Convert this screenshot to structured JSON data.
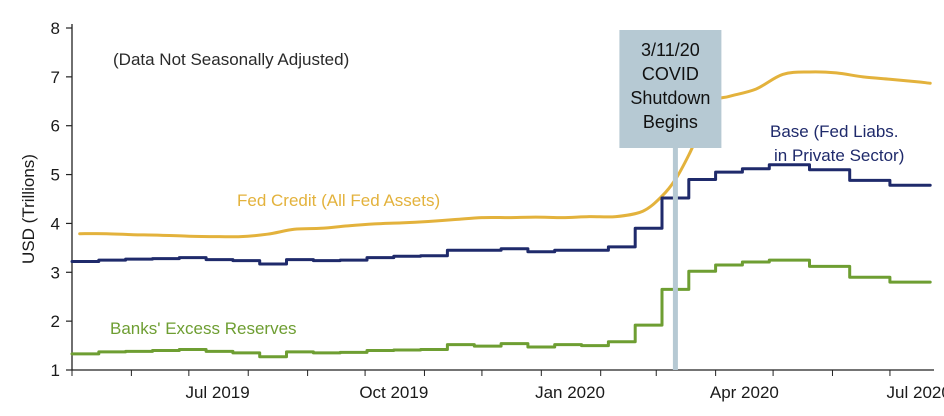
{
  "chart_data": {
    "type": "line",
    "ylabel": "USD (Trillions)",
    "ylim": [
      1,
      8
    ],
    "y_ticks": [
      "1",
      "2",
      "3",
      "4",
      "5",
      "6",
      "7",
      "8"
    ],
    "x_range": [
      "2019-05-01",
      "2020-07-24"
    ],
    "x_ticks": [
      {
        "date": "2019-07-01",
        "label": "Jul 2019"
      },
      {
        "date": "2019-10-01",
        "label": "Oct 2019"
      },
      {
        "date": "2020-01-01",
        "label": "Jan 2020"
      },
      {
        "date": "2020-04-01",
        "label": "Apr 2020"
      },
      {
        "date": "2020-07-01",
        "label": "Jul 2020"
      }
    ],
    "note": "(Data Not Seasonally Adjusted)",
    "event": {
      "date": "2020-03-11",
      "label_lines": [
        "3/11/20",
        "COVID",
        "Shutdown",
        "Begins"
      ]
    },
    "series": [
      {
        "name": "Fed Credit (All Fed Assets)",
        "color": "#E3B23C",
        "dates": [
          "2019-05-05",
          "2019-05-19",
          "2019-06-02",
          "2019-06-16",
          "2019-06-30",
          "2019-07-14",
          "2019-07-28",
          "2019-08-11",
          "2019-08-25",
          "2019-09-08",
          "2019-09-22",
          "2019-10-06",
          "2019-10-20",
          "2019-11-03",
          "2019-11-17",
          "2019-12-01",
          "2019-12-15",
          "2019-12-29",
          "2020-01-12",
          "2020-01-26",
          "2020-02-09",
          "2020-02-23",
          "2020-03-04",
          "2020-03-11",
          "2020-03-18",
          "2020-03-25",
          "2020-04-01",
          "2020-04-08",
          "2020-04-22",
          "2020-05-06",
          "2020-05-20",
          "2020-06-03",
          "2020-06-17",
          "2020-07-01",
          "2020-07-15",
          "2020-07-22"
        ],
        "values": [
          3.79,
          3.79,
          3.77,
          3.76,
          3.74,
          3.73,
          3.73,
          3.78,
          3.88,
          3.9,
          3.95,
          3.99,
          4.01,
          4.04,
          4.08,
          4.12,
          4.12,
          4.13,
          4.12,
          4.14,
          4.14,
          4.25,
          4.56,
          4.9,
          5.4,
          6.0,
          6.5,
          6.6,
          6.75,
          7.05,
          7.1,
          7.08,
          7.0,
          6.95,
          6.9,
          6.87
        ]
      },
      {
        "name": "Base (Fed Liabs. in Private Sector)",
        "label_lines": [
          "Base (Fed Liabs.",
          "in Private Sector)"
        ],
        "color": "#1F2A6B",
        "dates": [
          "2019-05-01",
          "2019-05-15",
          "2019-05-29",
          "2019-06-12",
          "2019-06-26",
          "2019-07-10",
          "2019-07-24",
          "2019-08-07",
          "2019-08-21",
          "2019-09-04",
          "2019-09-18",
          "2019-10-02",
          "2019-10-16",
          "2019-10-30",
          "2019-11-13",
          "2019-11-27",
          "2019-12-11",
          "2019-12-25",
          "2020-01-08",
          "2020-01-22",
          "2020-02-05",
          "2020-02-19",
          "2020-03-04",
          "2020-03-11",
          "2020-03-18",
          "2020-03-25",
          "2020-04-01",
          "2020-04-08",
          "2020-04-15",
          "2020-04-22",
          "2020-04-29",
          "2020-05-06",
          "2020-05-13",
          "2020-05-20",
          "2020-05-27",
          "2020-06-03",
          "2020-06-10",
          "2020-06-17",
          "2020-06-24",
          "2020-07-01",
          "2020-07-08",
          "2020-07-15",
          "2020-07-22"
        ],
        "values": [
          3.22,
          3.25,
          3.27,
          3.28,
          3.3,
          3.26,
          3.24,
          3.17,
          3.26,
          3.24,
          3.25,
          3.3,
          3.33,
          3.34,
          3.45,
          3.45,
          3.48,
          3.42,
          3.45,
          3.45,
          3.52,
          3.9,
          4.52,
          4.52,
          4.9,
          4.9,
          5.05,
          5.05,
          5.12,
          5.12,
          5.2,
          5.2,
          5.2,
          5.1,
          5.1,
          5.1,
          4.88,
          4.88,
          4.88,
          4.78,
          4.78,
          4.78,
          4.78
        ]
      },
      {
        "name": "Banks' Excess Reserves",
        "color": "#6E9E32",
        "dates": [
          "2019-05-01",
          "2019-05-15",
          "2019-05-29",
          "2019-06-12",
          "2019-06-26",
          "2019-07-10",
          "2019-07-24",
          "2019-08-07",
          "2019-08-21",
          "2019-09-04",
          "2019-09-18",
          "2019-10-02",
          "2019-10-16",
          "2019-10-30",
          "2019-11-13",
          "2019-11-27",
          "2019-12-11",
          "2019-12-25",
          "2020-01-08",
          "2020-01-22",
          "2020-02-05",
          "2020-02-19",
          "2020-03-04",
          "2020-03-11",
          "2020-03-18",
          "2020-03-25",
          "2020-04-01",
          "2020-04-08",
          "2020-04-15",
          "2020-04-22",
          "2020-04-29",
          "2020-05-06",
          "2020-05-13",
          "2020-05-20",
          "2020-05-27",
          "2020-06-03",
          "2020-06-10",
          "2020-06-17",
          "2020-06-24",
          "2020-07-01",
          "2020-07-08",
          "2020-07-15",
          "2020-07-22"
        ],
        "values": [
          1.33,
          1.37,
          1.38,
          1.4,
          1.42,
          1.38,
          1.35,
          1.27,
          1.37,
          1.35,
          1.36,
          1.4,
          1.41,
          1.42,
          1.52,
          1.49,
          1.54,
          1.47,
          1.52,
          1.5,
          1.58,
          1.92,
          2.65,
          2.65,
          3.02,
          3.02,
          3.15,
          3.15,
          3.21,
          3.21,
          3.25,
          3.25,
          3.25,
          3.12,
          3.12,
          3.12,
          2.9,
          2.9,
          2.9,
          2.8,
          2.8,
          2.8,
          2.8
        ]
      }
    ]
  }
}
